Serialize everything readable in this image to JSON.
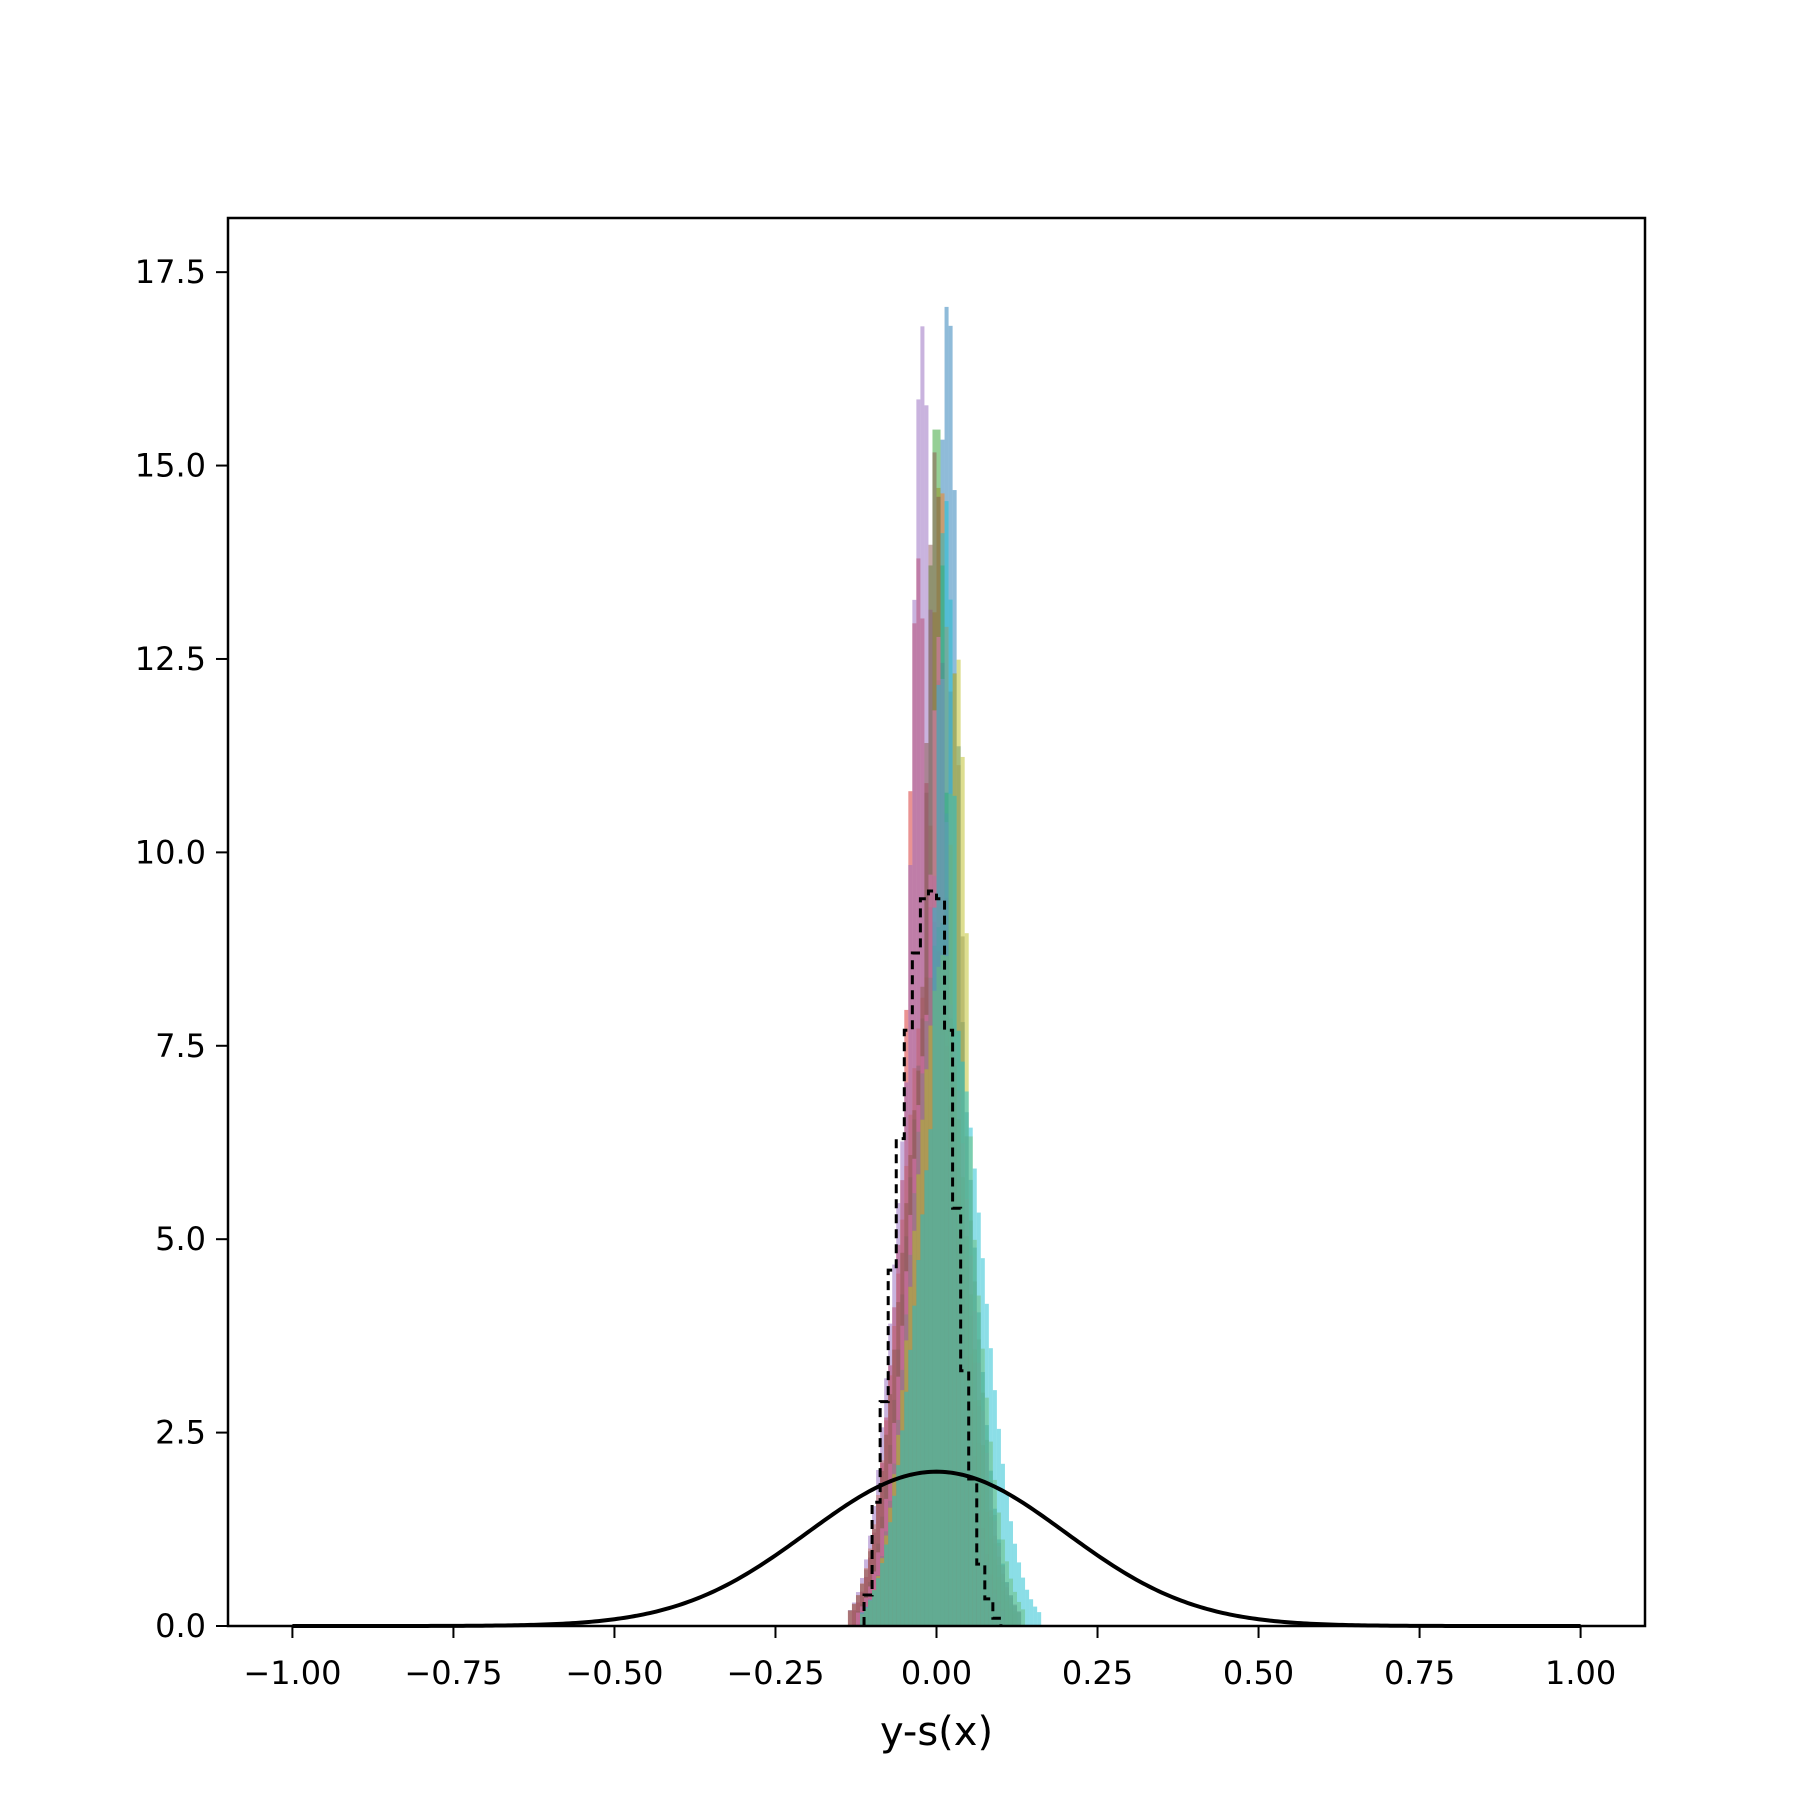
{
  "chart_data": {
    "type": "histogram",
    "xlabel": "y-s(x)",
    "ylabel": "",
    "title": "",
    "xlim": [
      -1.1,
      1.1
    ],
    "ylim": [
      0,
      18.2
    ],
    "xticks": [
      -1.0,
      -0.75,
      -0.5,
      -0.25,
      0.0,
      0.25,
      0.5,
      0.75,
      1.0
    ],
    "xtick_labels": [
      "−1.00",
      "−0.75",
      "−0.50",
      "−0.25",
      "0.00",
      "0.25",
      "0.50",
      "0.75",
      "1.00"
    ],
    "yticks": [
      0.0,
      2.5,
      5.0,
      7.5,
      10.0,
      12.5,
      15.0,
      17.5
    ],
    "ytick_labels": [
      "0.0",
      "2.5",
      "5.0",
      "7.5",
      "10.0",
      "12.5",
      "15.0",
      "17.5"
    ],
    "grid": false,
    "legend": false,
    "bin_width": 0.0125,
    "series": [
      {
        "color": "#1f77b4",
        "mu": 0.012,
        "sigma": 0.041,
        "spike": {
          "x": 0.018,
          "y": 17.2
        }
      },
      {
        "color": "#ff7f0e",
        "mu": -0.008,
        "sigma": 0.046,
        "spike": {
          "x": 0.006,
          "y": 14.9
        }
      },
      {
        "color": "#2ca02c",
        "mu": 0.0,
        "sigma": 0.044,
        "spike": {
          "x": 0.0,
          "y": 15.7
        }
      },
      {
        "color": "#d62728",
        "mu": -0.012,
        "sigma": 0.042,
        "spike": {
          "x": -0.028,
          "y": 13.8
        }
      },
      {
        "color": "#9467bd",
        "mu": -0.016,
        "sigma": 0.043,
        "spike": {
          "x": -0.022,
          "y": 16.8
        }
      },
      {
        "color": "#8c564b",
        "mu": -0.004,
        "sigma": 0.048,
        "spike": {
          "x": -0.002,
          "y": 15.2
        }
      },
      {
        "color": "#e377c2",
        "mu": 0.004,
        "sigma": 0.045,
        "spike": {
          "x": 0.004,
          "y": 12.8
        }
      },
      {
        "color": "#7f7f7f",
        "mu": 0.008,
        "sigma": 0.043,
        "spike": {
          "x": 0.026,
          "y": 12.4
        }
      },
      {
        "color": "#bcbd22",
        "mu": 0.012,
        "sigma": 0.045,
        "spike": {
          "x": 0.032,
          "y": 12.6
        }
      },
      {
        "color": "#17becf",
        "mu": 0.022,
        "sigma": 0.05,
        "spike": {
          "x": 0.014,
          "y": 14.6
        }
      }
    ],
    "aggregate_step": {
      "style": "dashed",
      "color": "#000000",
      "edges": [
        -0.1125,
        -0.1,
        -0.0875,
        -0.075,
        -0.0625,
        -0.05,
        -0.0375,
        -0.025,
        -0.0125,
        0.0,
        0.0125,
        0.025,
        0.0375,
        0.05,
        0.0625,
        0.075,
        0.0875,
        0.1
      ],
      "values": [
        0.4,
        1.6,
        2.9,
        4.6,
        6.3,
        7.7,
        8.7,
        9.4,
        9.5,
        9.4,
        7.7,
        5.4,
        3.3,
        1.9,
        0.8,
        0.35,
        0.1
      ]
    },
    "normal_curve": {
      "color": "#000000",
      "mu": 0.0,
      "sigma": 0.2,
      "x_range": [
        -1.0,
        1.0
      ]
    }
  }
}
